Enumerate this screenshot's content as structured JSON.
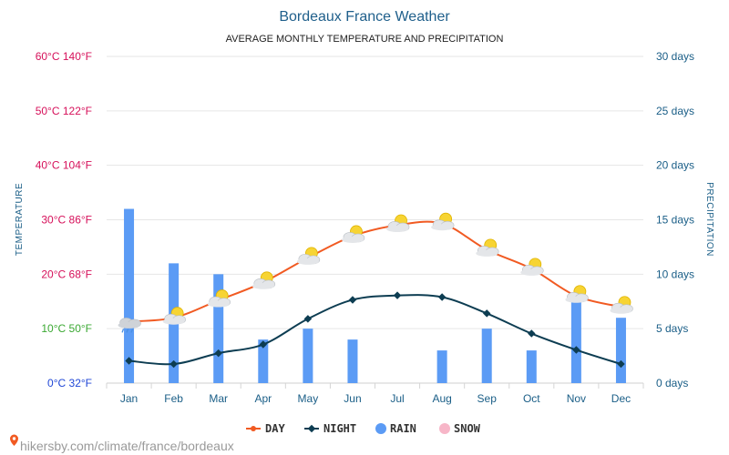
{
  "title": "Bordeaux France Weather",
  "subtitle": "AVERAGE MONTHLY TEMPERATURE AND PRECIPITATION",
  "source": "hikersby.com/climate/france/bordeaux",
  "colors": {
    "day": "#f15a22",
    "night": "#0d3d52",
    "rain": "#5b9bf5",
    "snow": "#f7b6c8",
    "grid": "#e6e6e6",
    "title": "#1f5f8b",
    "axis_text": "#1a5e87",
    "temp_hot": "#d6105a",
    "temp_mild": "#3aa832",
    "temp_cold": "#1f46d6"
  },
  "chart_data": {
    "type": "line",
    "title": "Bordeaux France Weather",
    "subtitle": "AVERAGE MONTHLY TEMPERATURE AND PRECIPITATION",
    "categories": [
      "Jan",
      "Feb",
      "Mar",
      "Apr",
      "May",
      "Jun",
      "Jul",
      "Aug",
      "Sep",
      "Oct",
      "Nov",
      "Dec"
    ],
    "y_left": {
      "label": "TEMPERATURE",
      "unit": "°C",
      "range": [
        0,
        60
      ],
      "ticks": [
        {
          "value": 60,
          "label": "60°C 140°F",
          "color": "#d6105a"
        },
        {
          "value": 50,
          "label": "50°C 122°F",
          "color": "#d6105a"
        },
        {
          "value": 40,
          "label": "40°C 104°F",
          "color": "#d6105a"
        },
        {
          "value": 30,
          "label": "30°C 86°F",
          "color": "#d6105a"
        },
        {
          "value": 20,
          "label": "20°C 68°F",
          "color": "#d6105a"
        },
        {
          "value": 10,
          "label": "10°C 50°F",
          "color": "#3aa832"
        },
        {
          "value": 0,
          "label": "0°C 32°F",
          "color": "#1f46d6"
        }
      ]
    },
    "y_right": {
      "label": "PRECIPITATION",
      "unit": "days",
      "range": [
        0,
        30
      ],
      "ticks": [
        {
          "value": 30,
          "label": "30 days"
        },
        {
          "value": 25,
          "label": "25 days"
        },
        {
          "value": 20,
          "label": "20 days"
        },
        {
          "value": 15,
          "label": "15 days"
        },
        {
          "value": 10,
          "label": "10 days"
        },
        {
          "value": 5,
          "label": "5 days"
        },
        {
          "value": 0,
          "label": "0 days"
        }
      ]
    },
    "series": [
      {
        "name": "DAY",
        "type": "line",
        "axis": "left",
        "values": [
          11.3,
          12,
          15.2,
          18.5,
          23,
          27,
          29,
          29.3,
          24.5,
          21,
          16,
          14
        ]
      },
      {
        "name": "NIGHT",
        "type": "line",
        "axis": "left",
        "values": [
          4.1,
          3.5,
          5.5,
          7.1,
          11.8,
          15.3,
          16.1,
          15.8,
          12.8,
          9.1,
          6.1,
          3.5
        ]
      },
      {
        "name": "RAIN",
        "type": "bar",
        "axis": "right",
        "values": [
          16,
          11,
          10,
          4,
          5,
          4,
          0,
          3,
          5,
          3,
          8,
          6
        ]
      },
      {
        "name": "SNOW",
        "type": "bar",
        "axis": "right",
        "values": [
          0,
          0,
          0,
          0,
          0,
          0,
          0,
          0,
          0,
          0,
          0,
          0
        ]
      }
    ],
    "weather_icons": [
      "cloud-rain",
      "partly-cloudy",
      "partly-cloudy",
      "partly-cloudy",
      "partly-cloudy",
      "partly-cloudy",
      "partly-cloudy",
      "partly-cloudy",
      "partly-cloudy",
      "partly-cloudy",
      "partly-cloudy",
      "partly-cloudy"
    ],
    "grid": true,
    "legend": {
      "position": "bottom",
      "items": [
        {
          "label": "DAY",
          "marker": "line-dot",
          "color": "#f15a22"
        },
        {
          "label": "NIGHT",
          "marker": "line-diamond",
          "color": "#0d3d52"
        },
        {
          "label": "RAIN",
          "marker": "circle",
          "color": "#5b9bf5"
        },
        {
          "label": "SNOW",
          "marker": "circle",
          "color": "#f7b6c8"
        }
      ]
    }
  }
}
